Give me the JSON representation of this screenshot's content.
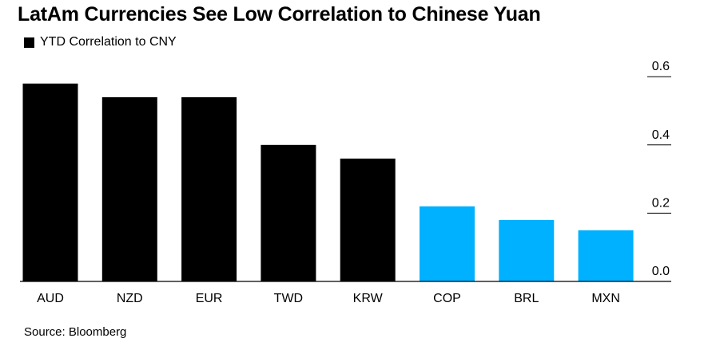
{
  "title": "LatAm Currencies See Low Correlation to Chinese Yuan",
  "source": "Source: Bloomberg",
  "colors": {
    "default_bar": "#000000",
    "latam_bar": "#00b1ff",
    "axis": "#000000"
  },
  "chart_data": {
    "type": "bar",
    "title": "LatAm Currencies See Low Correlation to Chinese Yuan",
    "legend": [
      {
        "name": "YTD Correlation to CNY",
        "color": "#000000"
      }
    ],
    "legend_position": "top-left",
    "categories": [
      "AUD",
      "NZD",
      "EUR",
      "TWD",
      "KRW",
      "COP",
      "BRL",
      "MXN"
    ],
    "series": [
      {
        "name": "YTD Correlation to CNY",
        "values": [
          0.58,
          0.54,
          0.54,
          0.4,
          0.36,
          0.22,
          0.18,
          0.15
        ],
        "colors": [
          "#000000",
          "#000000",
          "#000000",
          "#000000",
          "#000000",
          "#00b1ff",
          "#00b1ff",
          "#00b1ff"
        ]
      }
    ],
    "ylim": [
      0,
      0.6
    ],
    "yticks": [
      "0.0",
      "0.2",
      "0.4",
      "0.6"
    ],
    "y_axis_side": "right",
    "grid": false
  }
}
